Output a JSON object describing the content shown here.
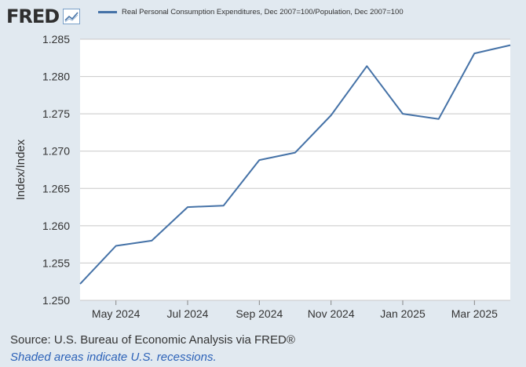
{
  "header": {
    "logo_text": "FRED",
    "logo_icon": "line-chart-icon"
  },
  "legend": {
    "label": "Real Personal Consumption Expenditures, Dec 2007=100/Population, Dec 2007=100"
  },
  "footer": {
    "source": "U.S. Bureau of Economic Analysis via FRED®",
    "source_prefix": "Source: ",
    "note": "Shaded areas indicate U.S. recessions."
  },
  "colors": {
    "line": "#4572a7",
    "plot_bg": "#ffffff",
    "page_bg": "#e1e9f0",
    "grid": "#c8c8c8",
    "note_text": "#2c62b8"
  },
  "chart_data": {
    "type": "line",
    "title": "",
    "xlabel": "",
    "ylabel": "Index/Index",
    "ylim": [
      1.25,
      1.285
    ],
    "yticks": [
      "1.250",
      "1.255",
      "1.260",
      "1.265",
      "1.270",
      "1.275",
      "1.280",
      "1.285"
    ],
    "xticks": [
      "May 2024",
      "Jul 2024",
      "Sep 2024",
      "Nov 2024",
      "Jan 2025",
      "Mar 2025"
    ],
    "grid": true,
    "series": [
      {
        "name": "Real Personal Consumption Expenditures, Dec 2007=100/Population, Dec 2007=100",
        "x": [
          "2024-04",
          "2024-05",
          "2024-06",
          "2024-07",
          "2024-08",
          "2024-09",
          "2024-10",
          "2024-11",
          "2024-12",
          "2025-01",
          "2025-02",
          "2025-03",
          "2025-04"
        ],
        "values": [
          1.2522,
          1.2573,
          1.258,
          1.2625,
          1.2627,
          1.2688,
          1.2698,
          1.2748,
          1.2814,
          1.275,
          1.2743,
          1.2831,
          1.2842
        ]
      }
    ]
  }
}
